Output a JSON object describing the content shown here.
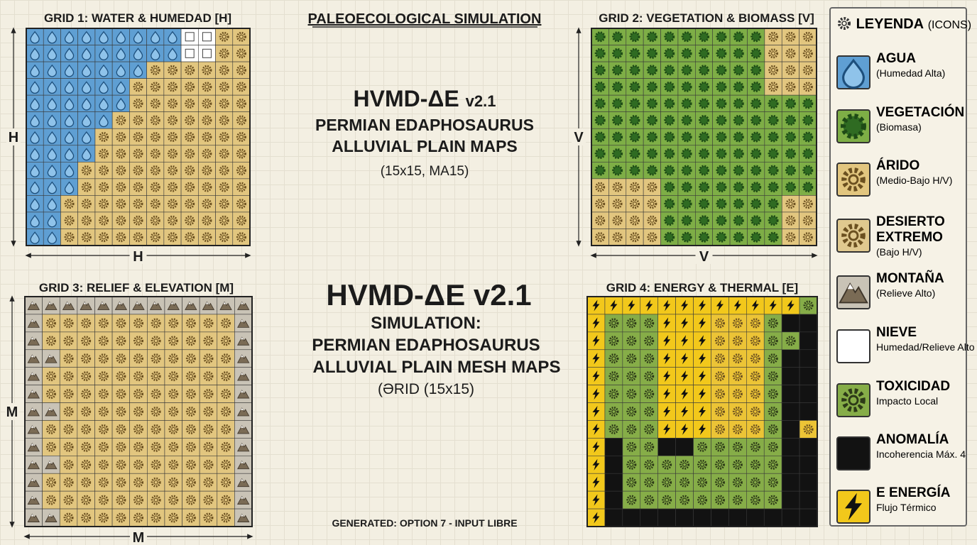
{
  "title": "PALEOECOLOGICAL SIMULATION",
  "grids": [
    {
      "title": "GRID 1: WATER & HUMEDAD [H]",
      "axis_label": "H"
    },
    {
      "title": "GRID 2: VEGETATION & BIOMASS [V]",
      "axis_label": "V"
    },
    {
      "title": "GRID 3: RELIEF & ELEVATION [M]",
      "axis_label": "M"
    },
    {
      "title": "GRID 4: ENERGY & THERMAL [E]"
    }
  ],
  "center_top": {
    "heading": "HVMD-ΔE",
    "version": "v2.1",
    "lines": [
      "PERMIAN EDAPHOSAURUS",
      "ALLUVIAL PLAIN  MAPS"
    ],
    "note": "(15x15, MA15)"
  },
  "center_bottom": {
    "heading": "HVMD-ΔE v2.1",
    "lines": [
      "SIMULATION:",
      "PERMIAN EDAPHOSAURUS",
      "ALLUVIAL PLAIN MESH MAPS"
    ],
    "note": "(ƏRID (15x15)"
  },
  "legend": {
    "title": "LEYENDA",
    "subtitle": "(ICONS)",
    "items": [
      {
        "label": "AGUA",
        "detail": "(Humedad Alta)"
      },
      {
        "label": "VEGETACIÓN",
        "detail": "(Biomasa)"
      },
      {
        "label": "ÁRIDO",
        "detail": "(Medio-Bajo H/V)"
      },
      {
        "label": "DESIERTO EXTREMO",
        "detail": "(Bajo H/V)"
      },
      {
        "label": "MONTAÑA",
        "detail": "(Relieve Alto)"
      },
      {
        "label": "NIEVE",
        "detail": "Humedad/Relieve Alto"
      },
      {
        "label": "TOXICIDAD",
        "detail": "Impacto Local"
      },
      {
        "label": "ANOMALÍA",
        "detail": "Incoherencia Máx. 4"
      },
      {
        "label": "E ENERGÍA",
        "detail": "Flujo Térmico"
      }
    ]
  },
  "footer": "GENERATED: OPTION 7 - INPUT LIBRE"
}
